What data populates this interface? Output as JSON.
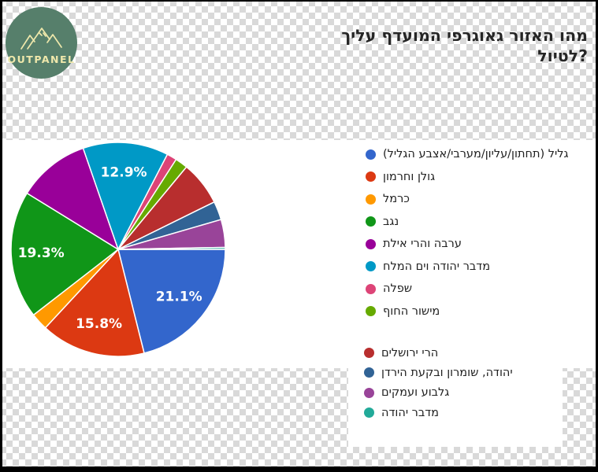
{
  "logo": {
    "text": "OUTPANEL",
    "bg_color": "#567f6b",
    "fg_color": "#efe8ab",
    "icon": "mountains-icon"
  },
  "title": {
    "line1": "מהו האזור גאוגרפי המועדף עליך",
    "line2": "לטיול?",
    "full": "מהו האזור גאוגרפי המועדף עליך לטיול?"
  },
  "chart_data": {
    "type": "pie",
    "title": "מהו האזור גאוגרפי המועדף עליך לטיול?",
    "legend_position": "right",
    "direction": "clockwise",
    "start_angle_deg_from_east": 0,
    "slice_border_color": "#ffffff",
    "label_color": "#ffffff",
    "slices": [
      {
        "label": "גליל (תחתון/עליון/מערבי/אצבע הגליל)",
        "value": 21.1,
        "color": "#3366CC",
        "pct_label": "21.1%"
      },
      {
        "label": "גולן וחרמון",
        "value": 15.8,
        "color": "#DC3912",
        "pct_label": "15.8%"
      },
      {
        "label": "כרמל",
        "value": 2.6,
        "color": "#FF9900",
        "pct_label": ""
      },
      {
        "label": "נגב",
        "value": 19.3,
        "color": "#109618",
        "pct_label": "19.3%"
      },
      {
        "label": "ערבה והרי אילת",
        "value": 10.9,
        "color": "#990099",
        "pct_label": ""
      },
      {
        "label": "מדבר יהודה וים המלח",
        "value": 12.9,
        "color": "#0099C6",
        "pct_label": "12.9%"
      },
      {
        "label": "שפלה",
        "value": 1.5,
        "color": "#DD4477",
        "pct_label": ""
      },
      {
        "label": "מישור החוף",
        "value": 1.9,
        "color": "#66AA00",
        "pct_label": ""
      },
      {
        "label": "הרי ירושלים",
        "value": 6.7,
        "color": "#B82E2E",
        "pct_label": ""
      },
      {
        "label": "יהודה, שומרון ובקעת הירדן",
        "value": 2.8,
        "color": "#316395",
        "pct_label": ""
      },
      {
        "label": "גלבוע ועמקים",
        "value": 4.2,
        "color": "#994499",
        "pct_label": ""
      },
      {
        "label": "מדבר יהודה",
        "value": 0.3,
        "color": "#22AA99",
        "pct_label": ""
      }
    ],
    "legend_groups": {
      "top_count": 8,
      "bottom_count": 4
    }
  }
}
